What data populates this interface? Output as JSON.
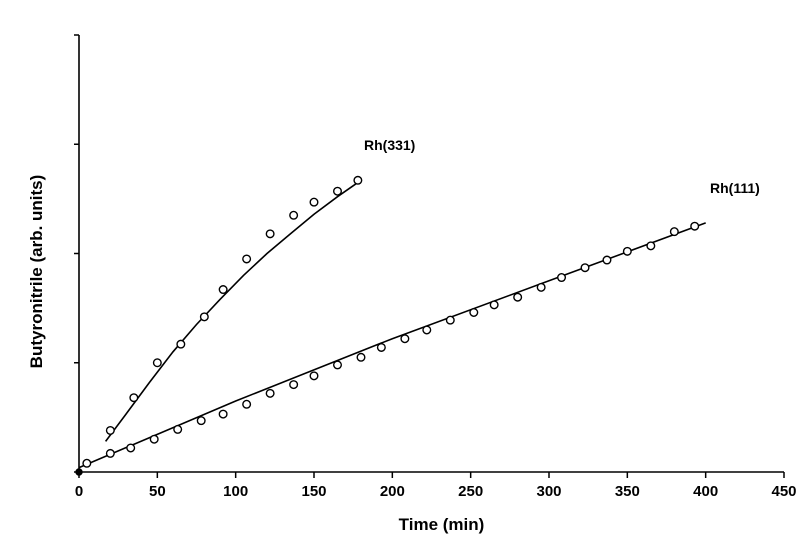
{
  "chart_data": {
    "type": "scatter",
    "xlabel": "Time (min)",
    "ylabel": "Butyronitrile (arb. units)",
    "xlim": [
      0,
      450
    ],
    "ylim": [
      0,
      4
    ],
    "x_ticks": [
      "0",
      "50",
      "100",
      "150",
      "200",
      "250",
      "300",
      "350",
      "400",
      "450"
    ],
    "y_ticks": [
      0,
      1,
      2,
      3,
      4
    ],
    "grid": false,
    "legend": "none",
    "series": [
      {
        "name": "Rh(331)",
        "marker": "open-circle",
        "points": [
          [
            20,
            0.38
          ],
          [
            35,
            0.68
          ],
          [
            50,
            1.0
          ],
          [
            65,
            1.17
          ],
          [
            80,
            1.42
          ],
          [
            92,
            1.67
          ],
          [
            107,
            1.95
          ],
          [
            122,
            2.18
          ],
          [
            137,
            2.35
          ],
          [
            150,
            2.47
          ],
          [
            165,
            2.57
          ],
          [
            178,
            2.67
          ]
        ],
        "fit": [
          [
            17,
            0.28
          ],
          [
            30,
            0.53
          ],
          [
            45,
            0.82
          ],
          [
            60,
            1.1
          ],
          [
            75,
            1.35
          ],
          [
            90,
            1.58
          ],
          [
            105,
            1.8
          ],
          [
            120,
            2.0
          ],
          [
            135,
            2.18
          ],
          [
            150,
            2.36
          ],
          [
            165,
            2.52
          ],
          [
            180,
            2.67
          ]
        ]
      },
      {
        "name": "Rh(111)",
        "marker": "open-circle",
        "points": [
          [
            5,
            0.08
          ],
          [
            20,
            0.17
          ],
          [
            33,
            0.22
          ],
          [
            48,
            0.3
          ],
          [
            63,
            0.39
          ],
          [
            78,
            0.47
          ],
          [
            92,
            0.53
          ],
          [
            107,
            0.62
          ],
          [
            122,
            0.72
          ],
          [
            137,
            0.8
          ],
          [
            150,
            0.88
          ],
          [
            165,
            0.98
          ],
          [
            180,
            1.05
          ],
          [
            193,
            1.14
          ],
          [
            208,
            1.22
          ],
          [
            222,
            1.3
          ],
          [
            237,
            1.39
          ],
          [
            252,
            1.46
          ],
          [
            265,
            1.53
          ],
          [
            280,
            1.6
          ],
          [
            295,
            1.69
          ],
          [
            308,
            1.78
          ],
          [
            323,
            1.87
          ],
          [
            337,
            1.94
          ],
          [
            350,
            2.02
          ],
          [
            365,
            2.07
          ],
          [
            380,
            2.2
          ],
          [
            393,
            2.25
          ]
        ],
        "fit": [
          [
            0,
            0.04
          ],
          [
            100,
            0.65
          ],
          [
            200,
            1.22
          ],
          [
            300,
            1.75
          ],
          [
            400,
            2.28
          ]
        ]
      }
    ]
  }
}
